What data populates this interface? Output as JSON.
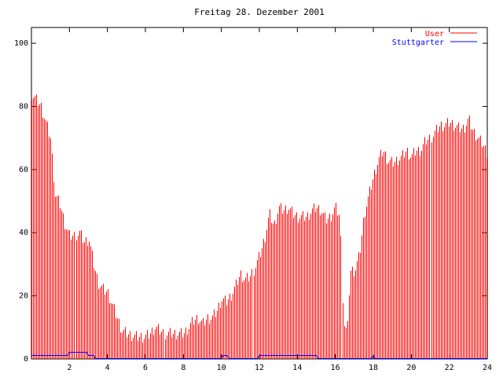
{
  "chart_data": {
    "type": "bar",
    "title": "Freitag 28. Dezember 2001",
    "xlabel": "",
    "ylabel": "",
    "xlim": [
      0,
      24
    ],
    "ylim": [
      0,
      105
    ],
    "x_ticks": [
      2,
      4,
      6,
      8,
      10,
      12,
      14,
      16,
      18,
      20,
      22,
      24
    ],
    "y_ticks": [
      0,
      20,
      40,
      60,
      80,
      100
    ],
    "grid": false,
    "legend_position": "top-right",
    "series": [
      {
        "name": "User",
        "color": "#ff0000",
        "style": "impulses",
        "points": [
          [
            0.0,
            84
          ],
          [
            0.5,
            80
          ],
          [
            1.0,
            70
          ],
          [
            1.25,
            52
          ],
          [
            1.5,
            49
          ],
          [
            1.75,
            43
          ],
          [
            2.0,
            39
          ],
          [
            2.25,
            39
          ],
          [
            2.5,
            40
          ],
          [
            2.75,
            37
          ],
          [
            3.0,
            38
          ],
          [
            3.25,
            30
          ],
          [
            3.5,
            24
          ],
          [
            3.75,
            22
          ],
          [
            4.0,
            21
          ],
          [
            4.25,
            17
          ],
          [
            4.5,
            13
          ],
          [
            4.75,
            9
          ],
          [
            5.0,
            8
          ],
          [
            5.5,
            7
          ],
          [
            6.0,
            7
          ],
          [
            6.25,
            8
          ],
          [
            6.5,
            10
          ],
          [
            6.75,
            9
          ],
          [
            7.0,
            8
          ],
          [
            7.5,
            8
          ],
          [
            8.0,
            8
          ],
          [
            8.25,
            10
          ],
          [
            8.5,
            12
          ],
          [
            8.75,
            13
          ],
          [
            9.0,
            11
          ],
          [
            9.25,
            13
          ],
          [
            9.5,
            13
          ],
          [
            9.75,
            15
          ],
          [
            10.0,
            19
          ],
          [
            10.25,
            18
          ],
          [
            10.5,
            20
          ],
          [
            10.75,
            23
          ],
          [
            11.0,
            27
          ],
          [
            11.25,
            25
          ],
          [
            11.5,
            26
          ],
          [
            11.75,
            29
          ],
          [
            12.0,
            33
          ],
          [
            12.25,
            38
          ],
          [
            12.5,
            46
          ],
          [
            12.75,
            42
          ],
          [
            13.0,
            48
          ],
          [
            13.25,
            47
          ],
          [
            13.5,
            48
          ],
          [
            13.75,
            46
          ],
          [
            14.0,
            45
          ],
          [
            14.25,
            45
          ],
          [
            14.5,
            45
          ],
          [
            14.75,
            47
          ],
          [
            15.0,
            48
          ],
          [
            15.25,
            47
          ],
          [
            15.5,
            44
          ],
          [
            15.75,
            45
          ],
          [
            16.0,
            48
          ],
          [
            16.25,
            45
          ],
          [
            16.4,
            12
          ],
          [
            16.6,
            8
          ],
          [
            16.75,
            28
          ],
          [
            17.0,
            28
          ],
          [
            17.25,
            33
          ],
          [
            17.5,
            46
          ],
          [
            17.75,
            52
          ],
          [
            18.0,
            58
          ],
          [
            18.25,
            63
          ],
          [
            18.5,
            66
          ],
          [
            18.75,
            63
          ],
          [
            19.0,
            62
          ],
          [
            19.25,
            63
          ],
          [
            19.5,
            64
          ],
          [
            19.75,
            66
          ],
          [
            20.0,
            64
          ],
          [
            20.25,
            66
          ],
          [
            20.5,
            66
          ],
          [
            20.75,
            69
          ],
          [
            21.0,
            70
          ],
          [
            21.25,
            72
          ],
          [
            21.5,
            74
          ],
          [
            21.75,
            74
          ],
          [
            22.0,
            75
          ],
          [
            22.25,
            74
          ],
          [
            22.5,
            73
          ],
          [
            22.75,
            73
          ],
          [
            23.0,
            76
          ],
          [
            23.25,
            72
          ],
          [
            23.5,
            70
          ],
          [
            23.75,
            68
          ],
          [
            24.0,
            65
          ]
        ]
      },
      {
        "name": "Stuttgarter",
        "color": "#0000ff",
        "style": "lines",
        "points": [
          [
            0.0,
            1
          ],
          [
            1.9,
            1
          ],
          [
            2.0,
            2
          ],
          [
            2.9,
            2
          ],
          [
            3.0,
            1
          ],
          [
            3.3,
            1
          ],
          [
            3.35,
            0
          ],
          [
            10.0,
            0
          ],
          [
            10.1,
            1
          ],
          [
            10.3,
            1
          ],
          [
            10.4,
            0
          ],
          [
            11.9,
            0
          ],
          [
            12.0,
            1
          ],
          [
            15.0,
            1
          ],
          [
            15.1,
            0
          ],
          [
            17.9,
            0
          ],
          [
            18.0,
            1
          ],
          [
            18.1,
            0
          ],
          [
            24.0,
            0
          ]
        ]
      }
    ]
  }
}
